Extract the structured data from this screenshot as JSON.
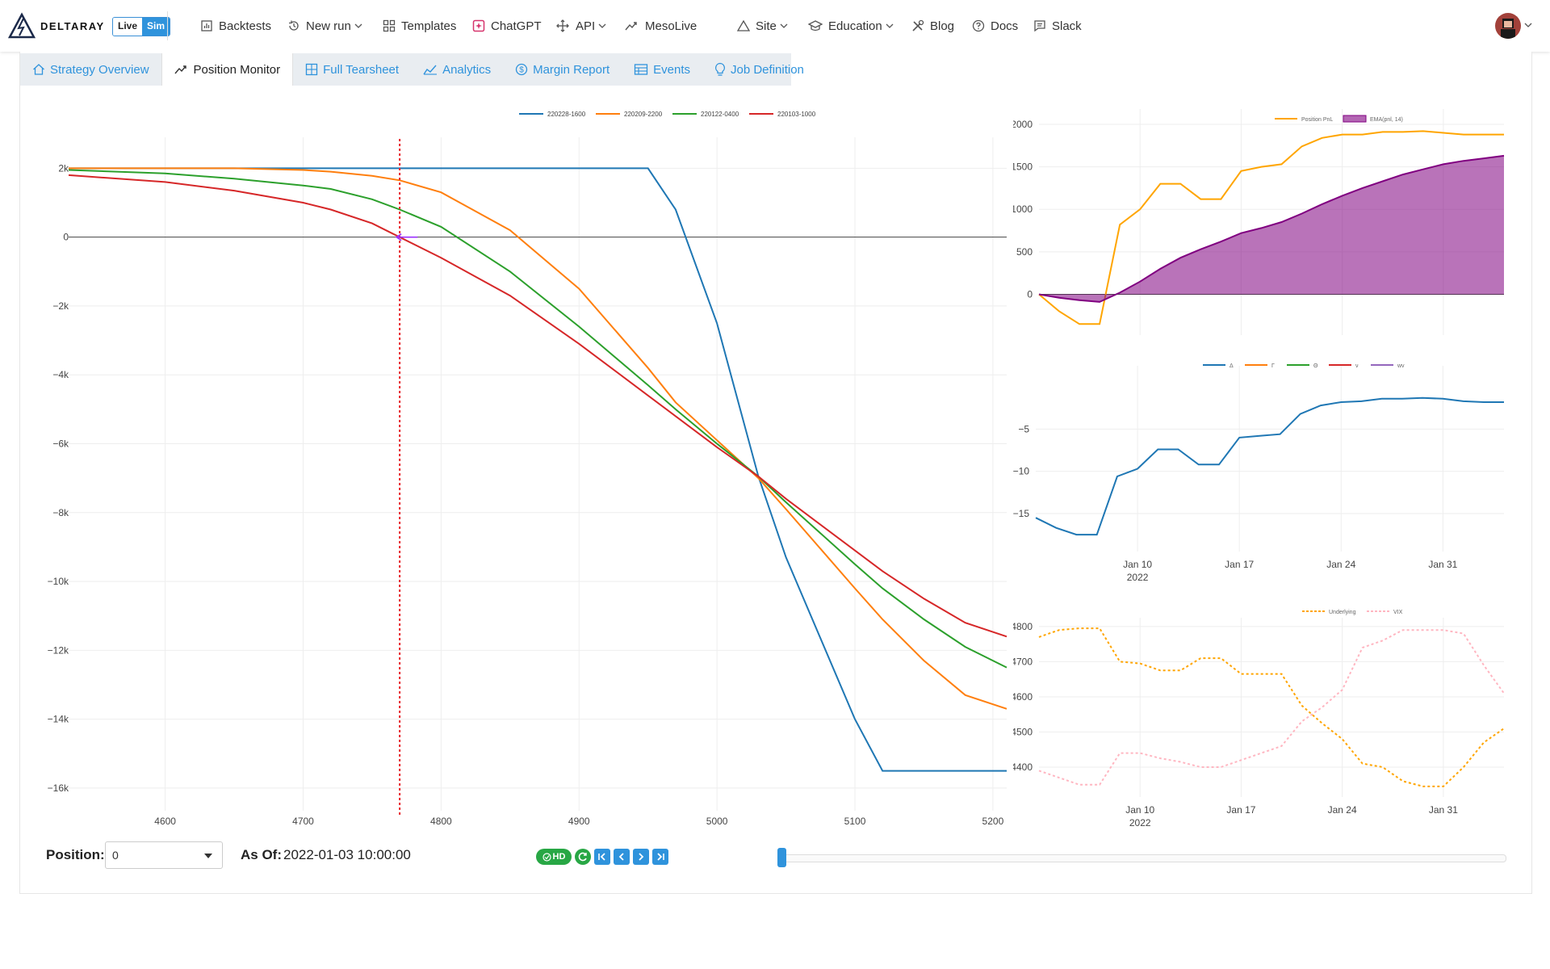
{
  "brand": {
    "name": "DELTARAY",
    "mode_live": "Live",
    "mode_sim": "Sim"
  },
  "nav": {
    "backtests": "Backtests",
    "new_run": "New run",
    "templates": "Templates",
    "chatgpt": "ChatGPT",
    "api": "API",
    "mesolive": "MesoLive",
    "site": "Site",
    "education": "Education",
    "blog": "Blog",
    "docs": "Docs",
    "slack": "Slack"
  },
  "tabs": [
    {
      "label": "Strategy Overview",
      "active": false
    },
    {
      "label": "Position Monitor",
      "active": true
    },
    {
      "label": "Full Tearsheet",
      "active": false
    },
    {
      "label": "Analytics",
      "active": false
    },
    {
      "label": "Margin Report",
      "active": false
    },
    {
      "label": "Events",
      "active": false
    },
    {
      "label": "Job Definition",
      "active": false
    }
  ],
  "controls": {
    "position_label": "Position:",
    "position_value": "0",
    "asof_label": "As Of:",
    "asof_value": "2022-01-03 10:00:00",
    "hd_label": "HD",
    "slider_value": 0
  },
  "chart_data": [
    {
      "type": "line",
      "legend": [
        "220228-1600",
        "220209-2200",
        "220122-0400",
        "220103-1000"
      ],
      "colors": [
        "#1f77b4",
        "#ff7f0e",
        "#2ca02c",
        "#d62728"
      ],
      "x": [
        4530,
        4600,
        4650,
        4700,
        4720,
        4750,
        4770,
        4800,
        4850,
        4900,
        4950,
        4970,
        5000,
        5030,
        5050,
        5100,
        5120,
        5150,
        5180,
        5210
      ],
      "series": [
        {
          "name": "220228-1600",
          "values": [
            2000,
            2000,
            2000,
            2000,
            2000,
            2000,
            2000,
            2000,
            2000,
            2000,
            2000,
            800,
            -2500,
            -6950,
            -9300,
            -14000,
            -15500,
            -15500,
            -15500,
            -15500
          ]
        },
        {
          "name": "220209-2200",
          "values": [
            2000,
            2000,
            2000,
            1950,
            1900,
            1780,
            1650,
            1300,
            200,
            -1500,
            -3800,
            -4800,
            -5900,
            -7000,
            -7900,
            -10200,
            -11100,
            -12300,
            -13300,
            -13700
          ]
        },
        {
          "name": "220122-0400",
          "values": [
            1950,
            1850,
            1700,
            1500,
            1400,
            1100,
            800,
            300,
            -1000,
            -2600,
            -4300,
            -5000,
            -6000,
            -6950,
            -7700,
            -9500,
            -10200,
            -11100,
            -11900,
            -12500
          ]
        },
        {
          "name": "220103-1000",
          "values": [
            1800,
            1600,
            1350,
            1000,
            800,
            400,
            0,
            -600,
            -1700,
            -3100,
            -4600,
            -5200,
            -6100,
            -6950,
            -7600,
            -9100,
            -9700,
            -10500,
            -11200,
            -11600
          ]
        }
      ],
      "xlim": [
        4530,
        5210
      ],
      "xticks": [
        "4600",
        "4700",
        "4800",
        "4900",
        "5000",
        "5100",
        "5200"
      ],
      "ylim": [
        -16800,
        2900
      ],
      "yticks": [
        {
          "v": 2000,
          "t": "2k"
        },
        {
          "v": 0,
          "t": "0"
        },
        {
          "v": -2000,
          "t": "−2k"
        },
        {
          "v": -4000,
          "t": "−4k"
        },
        {
          "v": -6000,
          "t": "−6k"
        },
        {
          "v": -8000,
          "t": "−8k"
        },
        {
          "v": -10000,
          "t": "−10k"
        },
        {
          "v": -12000,
          "t": "−12k"
        },
        {
          "v": -14000,
          "t": "−14k"
        },
        {
          "v": -16000,
          "t": "−16k"
        }
      ],
      "underlying_marker": 4770,
      "grid": true,
      "legend_position": "top"
    },
    {
      "type": "area",
      "legend": [
        "Position PnL",
        "EMA(pnl, 14)"
      ],
      "colors": [
        "#ffa500",
        "#800080"
      ],
      "x_dates": [
        "Jan 3",
        "Jan 4",
        "Jan 5",
        "Jan 6",
        "Jan 7",
        "Jan 10",
        "Jan 11",
        "Jan 12",
        "Jan 13",
        "Jan 14",
        "Jan 17",
        "Jan 18",
        "Jan 19",
        "Jan 20",
        "Jan 21",
        "Jan 24",
        "Jan 25",
        "Jan 26",
        "Jan 27",
        "Jan 28",
        "Jan 31",
        "Feb 1",
        "Feb 2",
        "Feb 3"
      ],
      "series": [
        {
          "name": "Position PnL",
          "values": [
            0,
            -200,
            -350,
            -350,
            820,
            1000,
            1300,
            1300,
            1120,
            1120,
            1450,
            1500,
            1530,
            1740,
            1840,
            1880,
            1880,
            1910,
            1910,
            1920,
            1900,
            1880,
            1880,
            1880
          ]
        },
        {
          "name": "EMA(pnl, 14)",
          "values": [
            0,
            -40,
            -70,
            -90,
            20,
            150,
            300,
            430,
            530,
            620,
            720,
            780,
            850,
            950,
            1060,
            1160,
            1250,
            1330,
            1410,
            1470,
            1530,
            1570,
            1600,
            1630
          ]
        }
      ],
      "ylim": [
        -480,
        2180
      ],
      "yticks": [
        "0",
        "500",
        "1000",
        "1500",
        "2000"
      ],
      "xticks": [
        {
          "t": "Jan 10",
          "sub": "2022"
        },
        {
          "t": "Jan 17",
          "sub": ""
        },
        {
          "t": "Jan 24",
          "sub": ""
        },
        {
          "t": "Jan 31",
          "sub": ""
        }
      ]
    },
    {
      "type": "line",
      "legend": [
        "Δ",
        "Γ",
        "Θ",
        "ν",
        "wv"
      ],
      "colors": [
        "#1f77b4",
        "#ff7f0e",
        "#2ca02c",
        "#d62728",
        "#9467bd"
      ],
      "x_dates": [
        "Jan 3",
        "Jan 4",
        "Jan 5",
        "Jan 6",
        "Jan 7",
        "Jan 10",
        "Jan 11",
        "Jan 12",
        "Jan 13",
        "Jan 14",
        "Jan 17",
        "Jan 18",
        "Jan 19",
        "Jan 20",
        "Jan 21",
        "Jan 24",
        "Jan 25",
        "Jan 26",
        "Jan 27",
        "Jan 28",
        "Jan 31",
        "Feb 1",
        "Feb 2",
        "Feb 3"
      ],
      "series": [
        {
          "name": "Δ",
          "values": [
            -15.5,
            -16.7,
            -17.5,
            -17.5,
            -10.6,
            -9.7,
            -7.4,
            -7.4,
            -9.2,
            -9.2,
            -6.0,
            -5.8,
            -5.6,
            -3.2,
            -2.2,
            -1.8,
            -1.7,
            -1.4,
            -1.4,
            -1.3,
            -1.4,
            -1.7,
            -1.8,
            -1.8
          ]
        }
      ],
      "ylim": [
        -19.5,
        2.5
      ],
      "yticks": [
        {
          "v": -5,
          "t": "−5"
        },
        {
          "v": -10,
          "t": "−10"
        },
        {
          "v": -15,
          "t": "−15"
        }
      ],
      "xticks": [
        {
          "t": "Jan 10",
          "sub": "2022"
        },
        {
          "t": "Jan 17",
          "sub": ""
        },
        {
          "t": "Jan 24",
          "sub": ""
        },
        {
          "t": "Jan 31",
          "sub": ""
        }
      ]
    },
    {
      "type": "line",
      "legend": [
        "Underlying",
        "VIX"
      ],
      "colors": [
        "#ffa500",
        "#ffb6c1"
      ],
      "x_dates": [
        "Jan 3",
        "Jan 4",
        "Jan 5",
        "Jan 6",
        "Jan 7",
        "Jan 10",
        "Jan 11",
        "Jan 12",
        "Jan 13",
        "Jan 14",
        "Jan 17",
        "Jan 18",
        "Jan 19",
        "Jan 20",
        "Jan 21",
        "Jan 24",
        "Jan 25",
        "Jan 26",
        "Jan 27",
        "Jan 28",
        "Jan 31",
        "Feb 1",
        "Feb 2",
        "Feb 3"
      ],
      "series": [
        {
          "name": "Underlying",
          "values": [
            4770,
            4790,
            4795,
            4795,
            4700,
            4695,
            4675,
            4675,
            4710,
            4710,
            4665,
            4665,
            4665,
            4575,
            4525,
            4480,
            4410,
            4400,
            4360,
            4345,
            4345,
            4400,
            4470,
            4510
          ]
        },
        {
          "name": "VIX",
          "values": [
            4390,
            4370,
            4350,
            4350,
            4440,
            4440,
            4425,
            4415,
            4400,
            4400,
            4420,
            4440,
            4460,
            4530,
            4570,
            4620,
            4740,
            4760,
            4790,
            4790,
            4790,
            4780,
            4690,
            4610
          ]
        }
      ],
      "ylim": [
        4315,
        4825
      ],
      "yticks": [
        "4400",
        "4500",
        "4600",
        "4700",
        "4800"
      ],
      "xticks": [
        {
          "t": "Jan 10",
          "sub": "2022"
        },
        {
          "t": "Jan 17",
          "sub": ""
        },
        {
          "t": "Jan 24",
          "sub": ""
        },
        {
          "t": "Jan 31",
          "sub": ""
        }
      ]
    }
  ]
}
